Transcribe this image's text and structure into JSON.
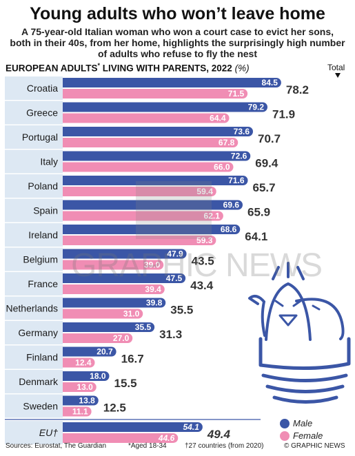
{
  "header": {
    "title": "Young adults who won’t leave home",
    "subtitle": "A 75-year-old Italian woman who won a court case to evict her sons, both in their 40s, from her home, highlights the surprisingly high number of adults who refuse to fly the nest",
    "heading_main": "EUROPEAN ADULTS",
    "heading_mark": "*",
    "heading_rest": " LIVING WITH PARENTS, 2022 ",
    "heading_unit": "(%)",
    "total_label": "Total"
  },
  "legend": {
    "male": "Male",
    "female": "Female"
  },
  "footer": {
    "sources": "Sources: Eurostat, The Guardian",
    "note_age": "*Aged 18-34",
    "note_eu": "†27 countries (from 2020)",
    "credit": "© GRAPHIC NEWS"
  },
  "watermark": {
    "logo": "GN",
    "text": "GRAPHIC NEWS"
  },
  "colors": {
    "male": "#3b56a6",
    "female": "#f08db4",
    "row_band": "#dde8f3",
    "total_text": "#333333"
  },
  "chart_data": {
    "type": "bar",
    "orientation": "horizontal",
    "categories": [
      "Croatia",
      "Greece",
      "Portugal",
      "Italy",
      "Poland",
      "Spain",
      "Ireland",
      "Belgium",
      "France",
      "Netherlands",
      "Germany",
      "Finland",
      "Denmark",
      "Sweden",
      "EU†"
    ],
    "series": [
      {
        "name": "Male",
        "values": [
          84.5,
          79.2,
          73.6,
          72.6,
          71.6,
          69.6,
          68.6,
          47.9,
          47.5,
          39.8,
          35.5,
          20.7,
          18.0,
          13.8,
          54.1
        ]
      },
      {
        "name": "Female",
        "values": [
          71.5,
          64.4,
          67.8,
          66.0,
          59.4,
          62.1,
          59.3,
          39.0,
          39.4,
          31.0,
          27.0,
          12.4,
          13.0,
          11.1,
          44.6
        ]
      }
    ],
    "totals": [
      78.2,
      71.9,
      70.7,
      69.4,
      65.7,
      65.9,
      64.1,
      43.5,
      43.4,
      35.5,
      31.3,
      16.7,
      15.5,
      12.5,
      49.4
    ],
    "value_labels": {
      "male": [
        "84.5",
        "79.2",
        "73.6",
        "72.6",
        "71.6",
        "69.6",
        "68.6",
        "47.9",
        "47.5",
        "39.8",
        "35.5",
        "20.7",
        "18.0",
        "13.8",
        "54.1"
      ],
      "female": [
        "71.5",
        "64.4",
        "67.8",
        "66.0",
        "59.4",
        "62.1",
        "59.3",
        "39.0",
        "39.4",
        "31.0",
        "27.0",
        "12.4",
        "13.0",
        "11.1",
        "44.6"
      ],
      "total": [
        "78.2",
        "71.9",
        "70.7",
        "69.4",
        "65.7",
        "65.9",
        "64.1",
        "43.5",
        "43.4",
        "35.5",
        "31.3",
        "16.7",
        "15.5",
        "12.5",
        "49.4"
      ]
    },
    "xlim": [
      0,
      100
    ],
    "grid": false,
    "legend_position": "bottom-right"
  }
}
